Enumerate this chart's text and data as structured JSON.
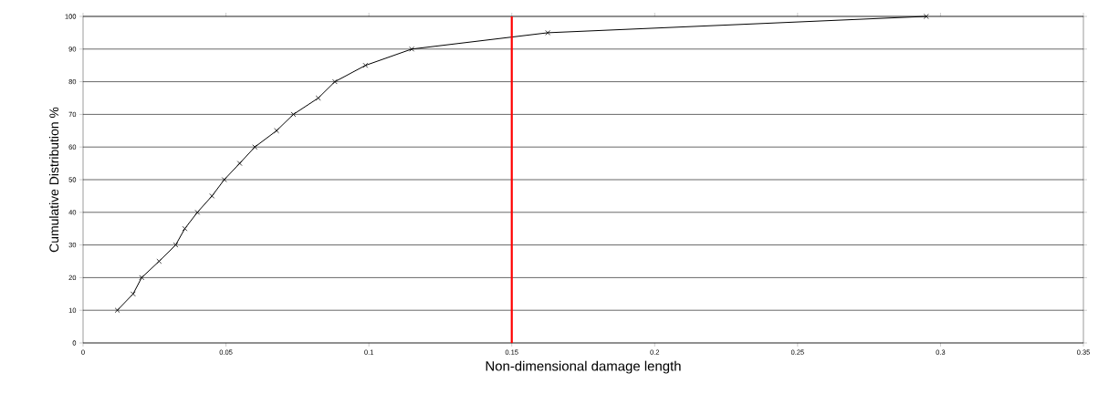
{
  "chart_data": {
    "type": "line",
    "xlabel": "Non-dimensional damage length",
    "ylabel": "Cumulative Distribution %",
    "x": [
      0.012,
      0.0175,
      0.0205,
      0.0266,
      0.0324,
      0.0356,
      0.04,
      0.0451,
      0.0494,
      0.0548,
      0.0601,
      0.0677,
      0.0736,
      0.0823,
      0.0881,
      0.0988,
      0.115,
      0.1626,
      0.295
    ],
    "series": [
      {
        "color": "#000000",
        "values": [
          10,
          15,
          20,
          25,
          30,
          35,
          40,
          45,
          50,
          55,
          60,
          65,
          70,
          75,
          80,
          85,
          90,
          95,
          100
        ]
      }
    ],
    "xlim": [
      0,
      0.35
    ],
    "xticks": [
      0,
      0.05,
      0.1,
      0.15,
      0.2,
      0.25,
      0.3,
      0.35
    ],
    "ylim": [
      0,
      100
    ],
    "yticks": [
      0,
      10,
      20,
      30,
      40,
      50,
      60,
      70,
      80,
      90,
      100
    ],
    "grid": "y",
    "marker": "cross",
    "line_style": "solid",
    "ref_lines": [
      {
        "axis": "x",
        "value": 0.15,
        "color": "#ff0000"
      }
    ]
  }
}
